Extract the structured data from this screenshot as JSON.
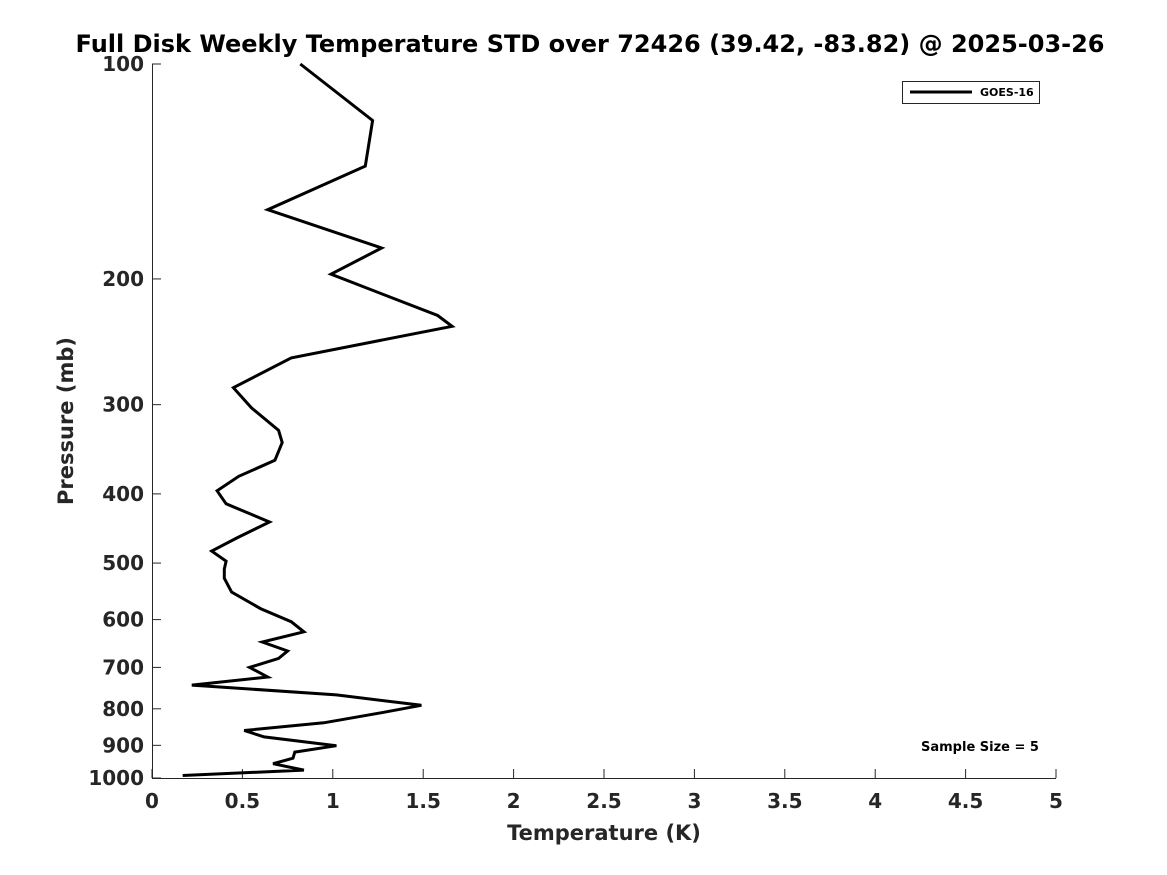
{
  "chart_data": {
    "type": "line",
    "title": "Full Disk Weekly Temperature STD over 72426 (39.42, -83.82) @ 2025-03-26",
    "xlabel": "Temperature (K)",
    "ylabel": "Pressure (mb)",
    "xlim": [
      0,
      5
    ],
    "ylim": [
      100,
      1000
    ],
    "y_scale": "log",
    "y_reversed": true,
    "x_ticks": [
      "0",
      "0.5",
      "1",
      "1.5",
      "2",
      "2.5",
      "3",
      "3.5",
      "4",
      "4.5",
      "5"
    ],
    "y_ticks": [
      "100",
      "200",
      "300",
      "400",
      "500",
      "600",
      "700",
      "800",
      "900",
      "1000"
    ],
    "grid": false,
    "legend_position": "top-right",
    "annotation": "Sample Size = 5",
    "series": [
      {
        "name": "GOES-16",
        "color": "#000000",
        "x": [
          0.82,
          1.22,
          1.18,
          0.64,
          1.27,
          0.99,
          1.58,
          1.66,
          0.77,
          0.45,
          0.55,
          0.7,
          0.72,
          0.68,
          0.48,
          0.36,
          0.41,
          0.65,
          0.47,
          0.33,
          0.41,
          0.4,
          0.4,
          0.44,
          0.6,
          0.77,
          0.84,
          0.61,
          0.75,
          0.7,
          0.54,
          0.64,
          0.22,
          1.02,
          1.49,
          1.27,
          0.95,
          0.51,
          0.62,
          1.02,
          0.79,
          0.78,
          0.67,
          0.84,
          0.17
        ],
        "y": [
          100,
          120,
          139,
          160,
          181,
          197,
          225,
          233,
          258,
          284,
          303,
          326,
          339,
          359,
          378,
          396,
          413,
          438,
          461,
          481,
          497,
          510,
          525,
          549,
          579,
          604,
          624,
          645,
          664,
          680,
          700,
          722,
          741,
          765,
          791,
          810,
          837,
          858,
          876,
          901,
          920,
          938,
          955,
          975,
          992
        ]
      }
    ]
  }
}
